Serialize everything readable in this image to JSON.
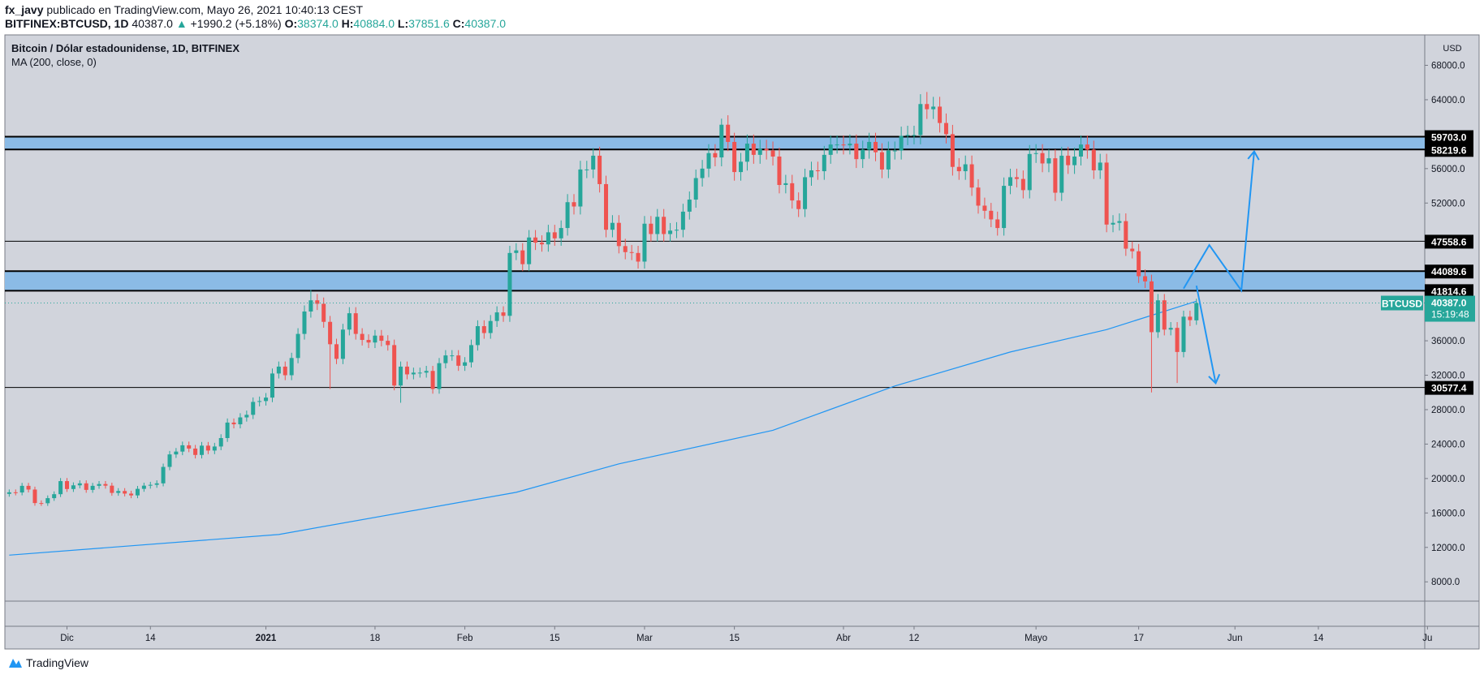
{
  "header": {
    "author": "fx_javy",
    "published": "publicado en TradingView.com, Mayo 26, 2021 10:40:13 CEST",
    "symbol": "BITFINEX:BTCUSD, 1D",
    "last": "40387.0",
    "change": "+1990.2 (+5.18%)",
    "o_label": "O:",
    "o": "38374.0",
    "h_label": "H:",
    "h": "40884.0",
    "l_label": "L:",
    "l": "37851.6",
    "c_label": "C:",
    "c": "40387.0"
  },
  "legend": {
    "title": "Bitcoin / Dólar estadounidense, 1D, BITFINEX",
    "indicator": "MA (200, close, 0)"
  },
  "footer": {
    "brand": "TradingView"
  },
  "colors": {
    "up": "#26a69a",
    "down": "#ef5350",
    "background": "#d1d4dc",
    "band": "#8bbbe6",
    "drawing": "#2196f3",
    "ma": "#2196f3"
  },
  "chart_data": {
    "type": "candlestick",
    "interval": "1D",
    "currency": "USD",
    "ylim": [
      4000,
      72000
    ],
    "y_ticks": [
      "68000.0",
      "64000.0",
      "56000.0",
      "52000.0",
      "36000.0",
      "32000.0",
      "28000.0",
      "24000.0",
      "20000.0",
      "16000.0",
      "12000.0",
      "8000.0"
    ],
    "x_ticks": [
      {
        "label": "Dic",
        "date": "2020-12-01"
      },
      {
        "label": "14",
        "date": "2020-12-14"
      },
      {
        "label": "2021",
        "date": "2021-01-01"
      },
      {
        "label": "18",
        "date": "2021-01-18"
      },
      {
        "label": "Feb",
        "date": "2021-02-01"
      },
      {
        "label": "15",
        "date": "2021-02-15"
      },
      {
        "label": "Mar",
        "date": "2021-03-01"
      },
      {
        "label": "15",
        "date": "2021-03-15"
      },
      {
        "label": "Abr",
        "date": "2021-04-01"
      },
      {
        "label": "12",
        "date": "2021-04-12"
      },
      {
        "label": "Mayo",
        "date": "2021-05-01"
      },
      {
        "label": "17",
        "date": "2021-05-17"
      },
      {
        "label": "Jun",
        "date": "2021-06-01"
      },
      {
        "label": "14",
        "date": "2021-06-14"
      },
      {
        "label": "Ju",
        "date": "2021-07-01"
      }
    ],
    "x_start": "2020-11-22",
    "closes": [
      18400,
      18380,
      19150,
      18720,
      17150,
      17130,
      17720,
      18180,
      19700,
      18780,
      19210,
      19440,
      18680,
      19150,
      19360,
      19170,
      18330,
      18550,
      18250,
      18040,
      18800,
      19170,
      19270,
      19440,
      21350,
      22800,
      23130,
      23860,
      23480,
      22740,
      23820,
      23250,
      23720,
      24700,
      26500,
      26300,
      27100,
      27400,
      28900,
      29000,
      29400,
      32200,
      33000,
      32000,
      34000,
      36800,
      39400,
      40700,
      40300,
      38200,
      35600,
      33900,
      37300,
      39200,
      36800,
      36100,
      35800,
      36600,
      36000,
      35500,
      30800,
      33000,
      32100,
      32300,
      32300,
      32500,
      30400,
      33400,
      34300,
      34300,
      33100,
      33500,
      35500,
      37700,
      36900,
      38300,
      39300,
      38900,
      46200,
      46500,
      44900,
      48000,
      47400,
      47200,
      48600,
      47900,
      49100,
      52100,
      51600,
      55900,
      55900,
      57500,
      54200,
      48900,
      49700,
      47000,
      46300,
      46200,
      45200,
      49600,
      48400,
      50400,
      48400,
      48800,
      48900,
      51000,
      52400,
      54900,
      56000,
      57800,
      57300,
      61100,
      59100,
      55600,
      56800,
      58900,
      57600,
      58300,
      58100,
      57400,
      54100,
      54300,
      52300,
      51300,
      55000,
      55800,
      55700,
      57600,
      58800,
      58800,
      58700,
      58900,
      57100,
      58200,
      59100,
      57900,
      55900,
      58100,
      58100,
      59800,
      59900,
      59900,
      63500,
      62900,
      63200,
      61300,
      60000,
      56200,
      55700,
      56500,
      53800,
      51700,
      51100,
      50100,
      49100,
      54000,
      55000,
      54800,
      53500,
      57700,
      57800,
      56600,
      57200,
      53200,
      57500,
      56400,
      57400,
      58800,
      58200,
      55800,
      56700,
      49500,
      49700,
      49900,
      46700,
      46400,
      43500,
      42900,
      37000,
      40700,
      37300,
      37500,
      34700,
      38800,
      38400,
      40387
    ],
    "last_candle": {
      "date": "2021-05-26",
      "open": 38374.0,
      "high": 40884.0,
      "low": 37851.6,
      "close": 40387.0
    },
    "notable_highs": {
      "2021-04-14": 64900,
      "2021-03-13": 61800,
      "2021-02-21": 58400,
      "2021-01-08": 41900
    },
    "notable_lows": {
      "2021-05-19": 30000,
      "2021-01-22": 28800,
      "2021-05-23": 31100,
      "2021-01-11": 30400
    },
    "ma200": [
      [
        "2020-11-22",
        11100
      ],
      [
        "2021-01-03",
        13500
      ],
      [
        "2021-02-09",
        18400
      ],
      [
        "2021-02-25",
        21700
      ],
      [
        "2021-03-21",
        25600
      ],
      [
        "2021-04-09",
        30750
      ],
      [
        "2021-04-27",
        34700
      ],
      [
        "2021-05-12",
        37300
      ],
      [
        "2021-05-26",
        40600
      ]
    ],
    "zones": [
      {
        "top": 59703.0,
        "bottom": 58219.6,
        "labels": [
          "59703.0",
          "58219.6"
        ]
      },
      {
        "top": 44089.6,
        "bottom": 41814.6,
        "labels": [
          "44089.6",
          "41814.6"
        ]
      }
    ],
    "levels": [
      {
        "price": 47558.6,
        "label": "47558.6"
      },
      {
        "price": 30577.4,
        "label": "30577.4"
      }
    ],
    "drawings": [
      {
        "points": [
          [
            "2021-05-24",
            42066
          ],
          [
            "2021-05-28",
            47120
          ],
          [
            "2021-06-02",
            41846
          ],
          [
            "2021-06-04",
            58000
          ]
        ]
      },
      {
        "points": [
          [
            "2021-05-26",
            42400
          ],
          [
            "2021-05-29",
            31077
          ]
        ]
      }
    ],
    "current": {
      "symbol": "BTCUSD",
      "price": 40387.0,
      "price_label": "40387.0",
      "countdown": "15:19:48"
    }
  }
}
